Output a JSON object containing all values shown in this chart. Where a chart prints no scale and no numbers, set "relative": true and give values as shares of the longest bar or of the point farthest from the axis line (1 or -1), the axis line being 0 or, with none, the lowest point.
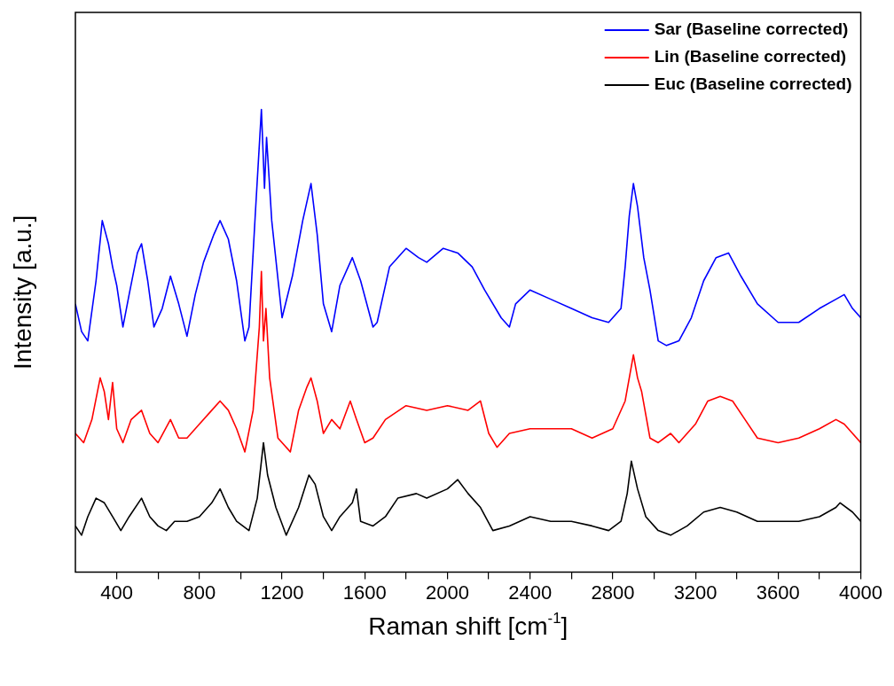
{
  "chart_data": {
    "type": "line",
    "xlabel": "Raman shift [cm$^{-1}$]",
    "ylabel": "Intensity [a.u.]",
    "relative": true,
    "legend": "top right",
    "grid": false,
    "marker": "none",
    "line_style": "solid",
    "xlim": [
      200,
      4000
    ],
    "xticks": [
      400,
      {
        "value": 600,
        "label": null
      },
      800,
      {
        "value": 1000,
        "label": null
      },
      1200,
      {
        "value": 1400,
        "label": null
      },
      1600,
      {
        "value": 1800,
        "label": null
      },
      2000,
      {
        "value": 2200,
        "label": null
      },
      2400,
      {
        "value": 2600,
        "label": null
      },
      2800,
      {
        "value": 3000,
        "label": null
      },
      3200,
      {
        "value": 3400,
        "label": null
      },
      3600,
      {
        "value": 3800,
        "label": null
      },
      4000
    ],
    "series": [
      {
        "name": "Sar (Baseline corrected)",
        "color": "#0000ff",
        "x": [
          200,
          230,
          260,
          300,
          330,
          360,
          380,
          400,
          430,
          460,
          500,
          520,
          550,
          580,
          620,
          660,
          700,
          740,
          780,
          820,
          870,
          900,
          940,
          980,
          1020,
          1040,
          1070,
          1100,
          1115,
          1125,
          1150,
          1200,
          1250,
          1300,
          1340,
          1370,
          1400,
          1440,
          1480,
          1540,
          1580,
          1640,
          1660,
          1720,
          1800,
          1860,
          1900,
          1980,
          2050,
          2120,
          2180,
          2260,
          2300,
          2330,
          2400,
          2500,
          2600,
          2700,
          2780,
          2840,
          2860,
          2880,
          2900,
          2920,
          2950,
          2980,
          3020,
          3060,
          3120,
          3180,
          3240,
          3300,
          3360,
          3420,
          3500,
          3600,
          3700,
          3800,
          3880,
          3920,
          3960,
          4000
        ],
        "values": [
          0.58,
          0.52,
          0.5,
          0.63,
          0.76,
          0.71,
          0.66,
          0.62,
          0.53,
          0.6,
          0.69,
          0.71,
          0.63,
          0.53,
          0.57,
          0.64,
          0.58,
          0.51,
          0.6,
          0.67,
          0.73,
          0.76,
          0.72,
          0.63,
          0.5,
          0.53,
          0.77,
          1.0,
          0.83,
          0.94,
          0.76,
          0.55,
          0.64,
          0.76,
          0.84,
          0.73,
          0.58,
          0.52,
          0.62,
          0.68,
          0.63,
          0.53,
          0.54,
          0.66,
          0.7,
          0.68,
          0.67,
          0.7,
          0.69,
          0.66,
          0.61,
          0.55,
          0.53,
          0.58,
          0.61,
          0.59,
          0.57,
          0.55,
          0.54,
          0.57,
          0.66,
          0.77,
          0.84,
          0.79,
          0.68,
          0.61,
          0.5,
          0.49,
          0.5,
          0.55,
          0.63,
          0.68,
          0.69,
          0.64,
          0.58,
          0.54,
          0.54,
          0.57,
          0.59,
          0.6,
          0.57,
          0.55
        ]
      },
      {
        "name": "Lin (Baseline corrected)",
        "color": "#ff0000",
        "x": [
          200,
          240,
          280,
          320,
          340,
          360,
          380,
          400,
          430,
          470,
          520,
          560,
          600,
          660,
          700,
          740,
          800,
          860,
          900,
          940,
          980,
          1020,
          1060,
          1090,
          1100,
          1110,
          1122,
          1140,
          1180,
          1240,
          1280,
          1320,
          1340,
          1370,
          1400,
          1440,
          1480,
          1530,
          1560,
          1600,
          1640,
          1700,
          1800,
          1900,
          2000,
          2100,
          2160,
          2200,
          2240,
          2300,
          2400,
          2500,
          2600,
          2700,
          2800,
          2860,
          2900,
          2920,
          2940,
          2980,
          3020,
          3080,
          3120,
          3200,
          3260,
          3320,
          3380,
          3440,
          3500,
          3600,
          3700,
          3800,
          3880,
          3920,
          4000
        ],
        "values": [
          0.3,
          0.28,
          0.33,
          0.42,
          0.39,
          0.33,
          0.41,
          0.31,
          0.28,
          0.33,
          0.35,
          0.3,
          0.28,
          0.33,
          0.29,
          0.29,
          0.32,
          0.35,
          0.37,
          0.35,
          0.31,
          0.26,
          0.35,
          0.53,
          0.65,
          0.5,
          0.57,
          0.42,
          0.29,
          0.26,
          0.35,
          0.4,
          0.42,
          0.37,
          0.3,
          0.33,
          0.31,
          0.37,
          0.33,
          0.28,
          0.29,
          0.33,
          0.36,
          0.35,
          0.36,
          0.35,
          0.37,
          0.3,
          0.27,
          0.3,
          0.31,
          0.31,
          0.31,
          0.29,
          0.31,
          0.37,
          0.47,
          0.42,
          0.39,
          0.29,
          0.28,
          0.3,
          0.28,
          0.32,
          0.37,
          0.38,
          0.37,
          0.33,
          0.29,
          0.28,
          0.29,
          0.31,
          0.33,
          0.32,
          0.28
        ]
      },
      {
        "name": "Euc (Baseline corrected)",
        "color": "#000000",
        "x": [
          200,
          230,
          260,
          300,
          340,
          380,
          420,
          460,
          520,
          560,
          600,
          640,
          680,
          740,
          800,
          860,
          900,
          940,
          980,
          1040,
          1080,
          1100,
          1110,
          1130,
          1170,
          1220,
          1280,
          1330,
          1360,
          1400,
          1440,
          1480,
          1540,
          1560,
          1580,
          1640,
          1700,
          1760,
          1850,
          1900,
          2000,
          2050,
          2100,
          2160,
          2220,
          2300,
          2400,
          2500,
          2600,
          2700,
          2780,
          2840,
          2870,
          2890,
          2920,
          2960,
          3020,
          3080,
          3160,
          3240,
          3320,
          3400,
          3500,
          3600,
          3700,
          3800,
          3880,
          3900,
          3960,
          4000
        ],
        "values": [
          0.1,
          0.08,
          0.12,
          0.16,
          0.15,
          0.12,
          0.09,
          0.12,
          0.16,
          0.12,
          0.1,
          0.09,
          0.11,
          0.11,
          0.12,
          0.15,
          0.18,
          0.14,
          0.11,
          0.09,
          0.16,
          0.24,
          0.28,
          0.21,
          0.14,
          0.08,
          0.14,
          0.21,
          0.19,
          0.12,
          0.09,
          0.12,
          0.15,
          0.18,
          0.11,
          0.1,
          0.12,
          0.16,
          0.17,
          0.16,
          0.18,
          0.2,
          0.17,
          0.14,
          0.09,
          0.1,
          0.12,
          0.11,
          0.11,
          0.1,
          0.09,
          0.11,
          0.17,
          0.24,
          0.18,
          0.12,
          0.09,
          0.08,
          0.1,
          0.13,
          0.14,
          0.13,
          0.11,
          0.11,
          0.11,
          0.12,
          0.14,
          0.15,
          0.13,
          0.11
        ]
      }
    ]
  }
}
